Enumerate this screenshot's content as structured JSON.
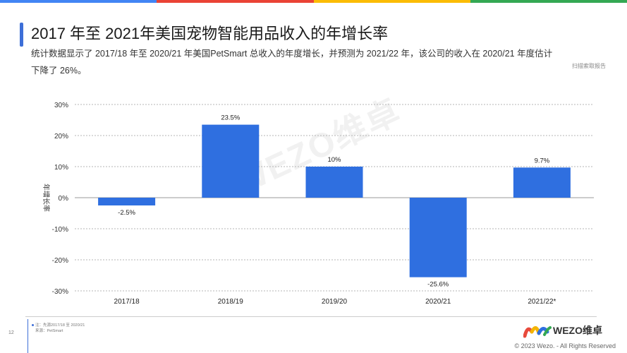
{
  "header": {
    "title": "2017 年至 2021年美国宠物智能用品收入的年增长率",
    "subtitle": "统计数据显示了 2017/18 年至 2020/21 年美国PetSmart 总收入的年度增长，并预测为 2021/22 年，该公司的收入在 2020/21 年度估计下降了 26%。",
    "report_link": "扫描索取报告"
  },
  "watermark": "WEZO维卓",
  "chart_data": {
    "type": "bar",
    "categories": [
      "2017/18",
      "2018/19",
      "2019/20",
      "2020/21",
      "2021/22*"
    ],
    "values": [
      -2.5,
      23.5,
      10,
      -25.6,
      9.7
    ],
    "value_labels": [
      "-2.5%",
      "23.5%",
      "10%",
      "-25.6%",
      "9.7%"
    ],
    "ylabel": "年增长率",
    "ylim": [
      -30,
      30
    ],
    "yticks": [
      30,
      20,
      10,
      0,
      -10,
      -20,
      -30
    ],
    "ytick_labels": [
      "30%",
      "20%",
      "10%",
      "0%",
      "-10%",
      "-20%",
      "-30%"
    ],
    "grid": true,
    "bar_color": "#2f6fe0"
  },
  "footer": {
    "page_number": "12",
    "source_line1": "注：先源2017/18 至 2020/21",
    "source_line2": "来源：PetSmart",
    "logo_text": "WEZO维卓",
    "copyright": "© 2023 Wezo. - All Rights Reserved"
  },
  "colors": {
    "accent": "#3d6fd8",
    "stripe": [
      "#4285f4",
      "#ea4335",
      "#fbbc05",
      "#34a853"
    ]
  }
}
